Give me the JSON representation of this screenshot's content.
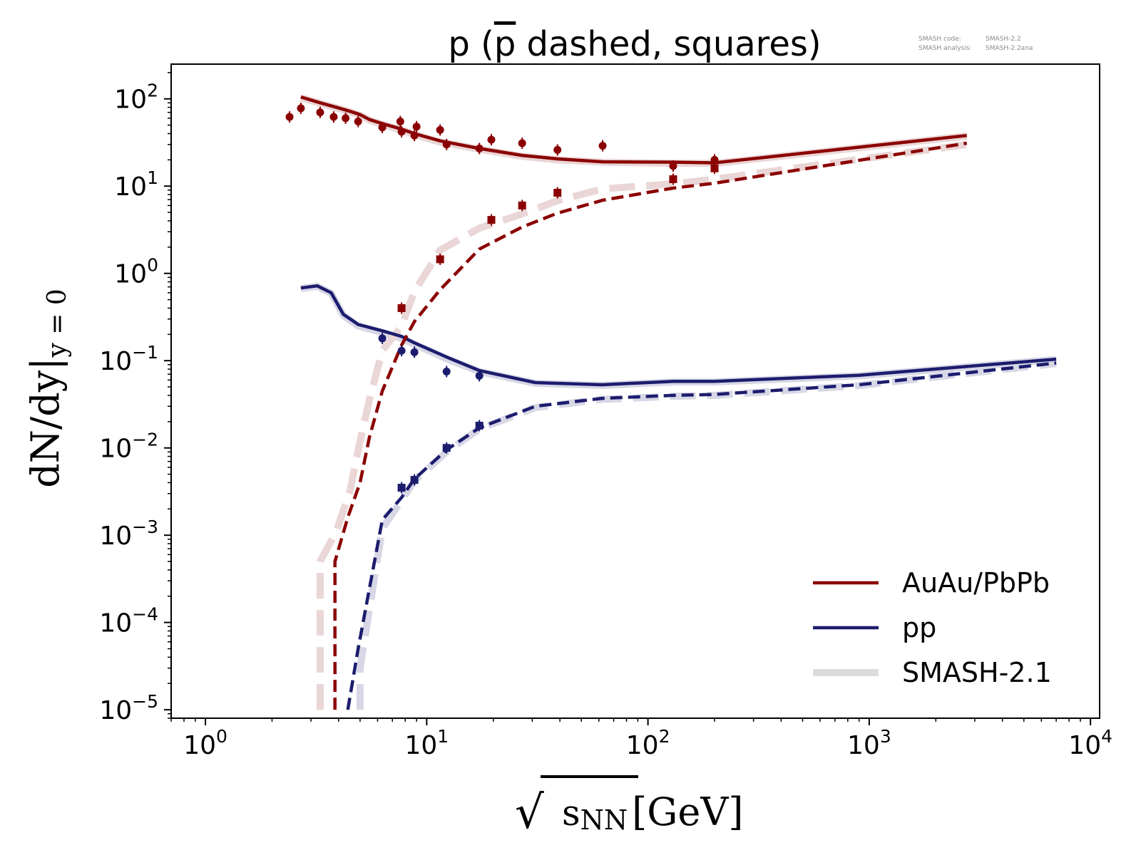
{
  "chart_data": {
    "type": "line",
    "title_main": "p (",
    "title_pbar": "p",
    "title_rest": " dashed, squares)",
    "info": {
      "code_label": "SMASH code:",
      "code_value": "SMASH-2.2",
      "analysis_label": "SMASH analysis:",
      "analysis_value": "SMASH-2.2ana"
    },
    "xlabel": {
      "sqrt": "√",
      "s": "s",
      "sub": "NN",
      "unit": "[GeV]"
    },
    "ylabel": {
      "main": "dN/dy|",
      "sub": "y = 0"
    },
    "x_scale": "log",
    "y_scale": "log",
    "xlim": [
      0.7,
      11000
    ],
    "ylim": [
      8e-06,
      250
    ],
    "x_ticks": [
      {
        "value": 1,
        "base": "10",
        "exp": "0"
      },
      {
        "value": 10,
        "base": "10",
        "exp": "1"
      },
      {
        "value": 100,
        "base": "10",
        "exp": "2"
      },
      {
        "value": 1000,
        "base": "10",
        "exp": "3"
      },
      {
        "value": 10000,
        "base": "10",
        "exp": "4"
      }
    ],
    "y_ticks": [
      {
        "value": 100,
        "base": "10",
        "exp": "2"
      },
      {
        "value": 10,
        "base": "10",
        "exp": "1"
      },
      {
        "value": 1,
        "base": "10",
        "exp": "0"
      },
      {
        "value": 0.1,
        "base": "10",
        "exp": "−1"
      },
      {
        "value": 0.01,
        "base": "10",
        "exp": "−2"
      },
      {
        "value": 0.001,
        "base": "10",
        "exp": "−3"
      },
      {
        "value": 0.0001,
        "base": "10",
        "exp": "−4"
      },
      {
        "value": 1e-05,
        "base": "10",
        "exp": "−5"
      }
    ],
    "colors": {
      "auau": "#8b0000",
      "pp": "#1c1c6e",
      "ref_auau": "#ead6d6",
      "ref_pp": "#d7d7e6"
    },
    "legend": {
      "position": "lower-right",
      "entries": [
        {
          "label": "AuAu/PbPb",
          "color": "#8b0000"
        },
        {
          "label": "pp",
          "color": "#1c1c6e"
        },
        {
          "label": "SMASH-2.1",
          "color": "#dcdcdc"
        }
      ]
    },
    "series": [
      {
        "role": "auau-p",
        "kind": "line",
        "style": "solid",
        "color": "#8b0000",
        "x": [
          2.7,
          3.3,
          3.9,
          4.5,
          5.0,
          5.5,
          6.3,
          7.7,
          8.8,
          11.5,
          17.3,
          27,
          39,
          62.4,
          130,
          200,
          2760
        ],
        "y": [
          105,
          90,
          80,
          72,
          66,
          58,
          52,
          45,
          40,
          33,
          27,
          22.5,
          20.5,
          19,
          18.8,
          18.5,
          38
        ]
      },
      {
        "role": "auau-pbar",
        "kind": "line",
        "style": "dashed",
        "color": "#8b0000",
        "x": [
          3.85,
          3.85,
          4.4,
          5.0,
          5.5,
          6.3,
          7.7,
          8.8,
          11.5,
          17.3,
          27,
          39,
          62.4,
          130,
          200,
          2760
        ],
        "y": [
          1e-05,
          0.0005,
          0.0016,
          0.004,
          0.013,
          0.045,
          0.15,
          0.28,
          0.65,
          1.9,
          3.4,
          4.9,
          6.9,
          9.5,
          10.8,
          31
        ]
      },
      {
        "role": "pp-p",
        "kind": "line",
        "style": "solid",
        "color": "#1c1c6e",
        "x": [
          2.7,
          3.2,
          3.7,
          4.2,
          4.9,
          6.3,
          7.7,
          8.8,
          12.3,
          17.3,
          31,
          62,
          130,
          200,
          900,
          7000
        ],
        "y": [
          0.68,
          0.72,
          0.6,
          0.34,
          0.26,
          0.22,
          0.19,
          0.16,
          0.11,
          0.077,
          0.056,
          0.053,
          0.058,
          0.058,
          0.068,
          0.104
        ]
      },
      {
        "role": "pp-pbar",
        "kind": "line",
        "style": "dashed",
        "color": "#1c1c6e",
        "x": [
          4.4,
          4.9,
          6.3,
          7.7,
          8.8,
          12.3,
          17.3,
          31,
          62,
          130,
          200,
          900,
          7000
        ],
        "y": [
          1e-05,
          5e-05,
          0.0015,
          0.0027,
          0.0044,
          0.0095,
          0.017,
          0.03,
          0.037,
          0.04,
          0.041,
          0.053,
          0.094
        ]
      },
      {
        "role": "ref-auau-p",
        "kind": "line",
        "style": "ref-solid",
        "color": "#ead6d6",
        "x": [
          2.7,
          3.3,
          3.9,
          4.5,
          5.0,
          5.5,
          6.3,
          7.7,
          8.8,
          11.5,
          17.3,
          27,
          39,
          62.4,
          130,
          200,
          2760
        ],
        "y": [
          103,
          89,
          79,
          71,
          65,
          57,
          51,
          44,
          39,
          32,
          26.5,
          22,
          20,
          18.8,
          18.3,
          18.2,
          37.5
        ]
      },
      {
        "role": "ref-auau-pbar",
        "kind": "line",
        "style": "ref-dashed",
        "color": "#ead6d6",
        "x": [
          3.3,
          3.3,
          3.9,
          4.5,
          5.0,
          5.5,
          6.3,
          7.7,
          8.8,
          11.5,
          17.3,
          27,
          39,
          62.4,
          130,
          200,
          2760
        ],
        "y": [
          1e-05,
          0.0005,
          0.0011,
          0.0032,
          0.012,
          0.035,
          0.13,
          0.25,
          0.62,
          1.85,
          3.3,
          4.8,
          6.8,
          9.3,
          10.6,
          12,
          30
        ]
      },
      {
        "role": "ref-pp-p",
        "kind": "line",
        "style": "ref-solid",
        "color": "#d7d7e6",
        "x": [
          2.7,
          3.2,
          3.7,
          4.2,
          4.9,
          6.3,
          7.7,
          8.8,
          12.3,
          17.3,
          31,
          62,
          130,
          200,
          900,
          7000
        ],
        "y": [
          0.67,
          0.71,
          0.59,
          0.33,
          0.25,
          0.21,
          0.18,
          0.155,
          0.105,
          0.075,
          0.055,
          0.052,
          0.057,
          0.057,
          0.067,
          0.103
        ]
      },
      {
        "role": "ref-pp-pbar",
        "kind": "line",
        "style": "ref-dashed",
        "color": "#d7d7e6",
        "x": [
          5.0,
          5.0,
          6.3,
          7.7,
          8.8,
          12.3,
          17.3,
          31,
          62,
          130,
          200,
          900,
          7000
        ],
        "y": [
          1e-05,
          3e-05,
          0.0012,
          0.0025,
          0.0042,
          0.009,
          0.0165,
          0.029,
          0.036,
          0.039,
          0.04,
          0.052,
          0.093
        ]
      },
      {
        "role": "auau-p-data",
        "kind": "scatter",
        "marker": "circle",
        "color": "#8b0000",
        "x": [
          2.4,
          2.7,
          3.3,
          3.8,
          4.3,
          4.9,
          6.3,
          7.6,
          7.7,
          8.8,
          9.0,
          11.5,
          12.3,
          17.3,
          19.6,
          27,
          39,
          62.4,
          130,
          200
        ],
        "y": [
          62,
          78,
          70,
          62,
          60,
          55,
          47,
          55,
          42,
          38,
          48,
          44,
          30,
          27,
          34,
          31,
          26,
          29,
          17,
          20
        ]
      },
      {
        "role": "auau-pbar-data",
        "kind": "scatter",
        "marker": "square",
        "color": "#8b0000",
        "x": [
          7.7,
          11.5,
          19.6,
          27,
          39,
          130,
          200
        ],
        "y": [
          0.4,
          1.45,
          4.1,
          6.0,
          8.4,
          12,
          16
        ]
      },
      {
        "role": "pp-p-data",
        "kind": "scatter",
        "marker": "circle",
        "color": "#1c1c6e",
        "x": [
          6.3,
          7.7,
          8.8,
          12.3,
          17.3
        ],
        "y": [
          0.18,
          0.13,
          0.125,
          0.075,
          0.067
        ]
      },
      {
        "role": "pp-pbar-data",
        "kind": "scatter",
        "marker": "square",
        "color": "#1c1c6e",
        "x": [
          7.7,
          8.8,
          12.3,
          17.3
        ],
        "y": [
          0.0035,
          0.0043,
          0.01,
          0.018
        ]
      }
    ]
  }
}
